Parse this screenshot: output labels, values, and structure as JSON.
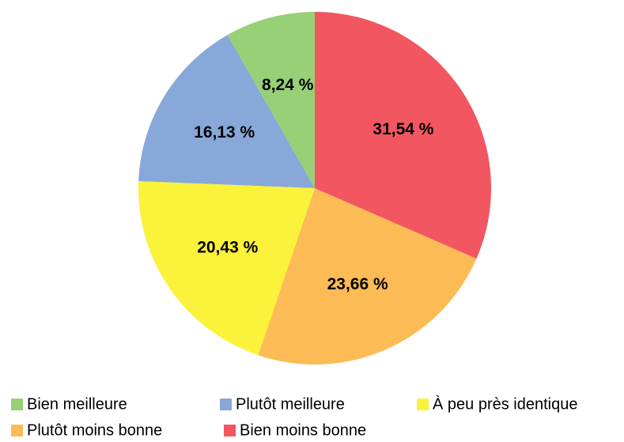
{
  "chart_data": {
    "type": "pie",
    "categories": [
      "Bien meilleure",
      "Plutôt meilleure",
      "À peu près identique",
      "Plutôt moins bonne",
      "Bien moins bonne"
    ],
    "values": [
      8.24,
      16.13,
      20.43,
      23.66,
      31.54
    ],
    "value_labels": [
      "8,24 %",
      "16,13 %",
      "20,43 %",
      "23,66 %",
      "31,54 %"
    ],
    "colors": [
      "#97d077",
      "#87a8d8",
      "#fbf23c",
      "#fdbb55",
      "#f25660"
    ],
    "legend": "bottom"
  }
}
